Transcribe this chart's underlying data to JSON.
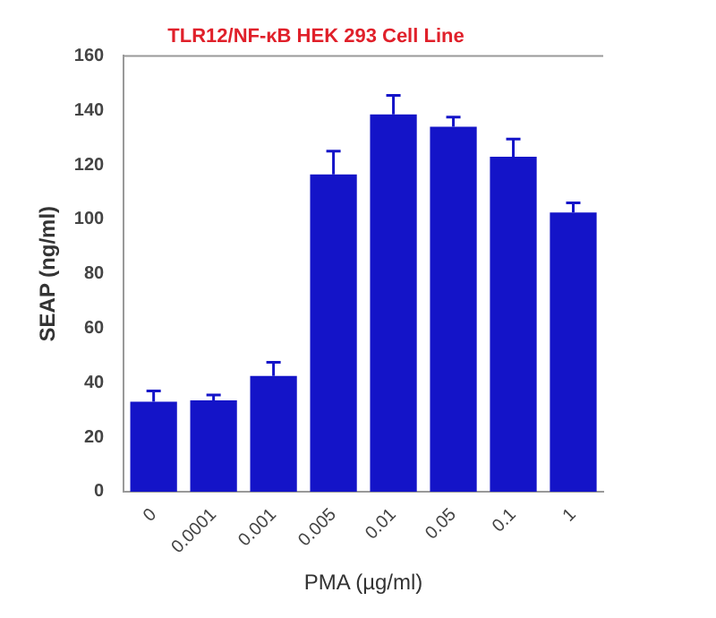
{
  "chart_data": {
    "type": "bar",
    "title": "TLR12/NF-κB HEK 293 Cell Line",
    "xlabel": "PMA (µg/ml)",
    "ylabel": "SEAP (ng/ml)",
    "categories": [
      "0",
      "0.0001",
      "0.001",
      "0.005",
      "0.01",
      "0.05",
      "0.1",
      "1"
    ],
    "values": [
      33,
      33.5,
      42.5,
      116.5,
      138.5,
      134,
      123,
      102.5
    ],
    "color": "#1414c8",
    "errors": [
      [
        33,
        37
      ],
      [
        33.5,
        35.5
      ],
      [
        42.5,
        47.5
      ],
      [
        116.5,
        125
      ],
      [
        138.5,
        145.5
      ],
      [
        134,
        137.5
      ],
      [
        123,
        129.5
      ],
      [
        102.5,
        106
      ]
    ],
    "ylim": [
      0,
      160
    ],
    "yticks": [
      0,
      20,
      40,
      60,
      80,
      100,
      120,
      140,
      160
    ],
    "grid": false,
    "legend": false
  }
}
